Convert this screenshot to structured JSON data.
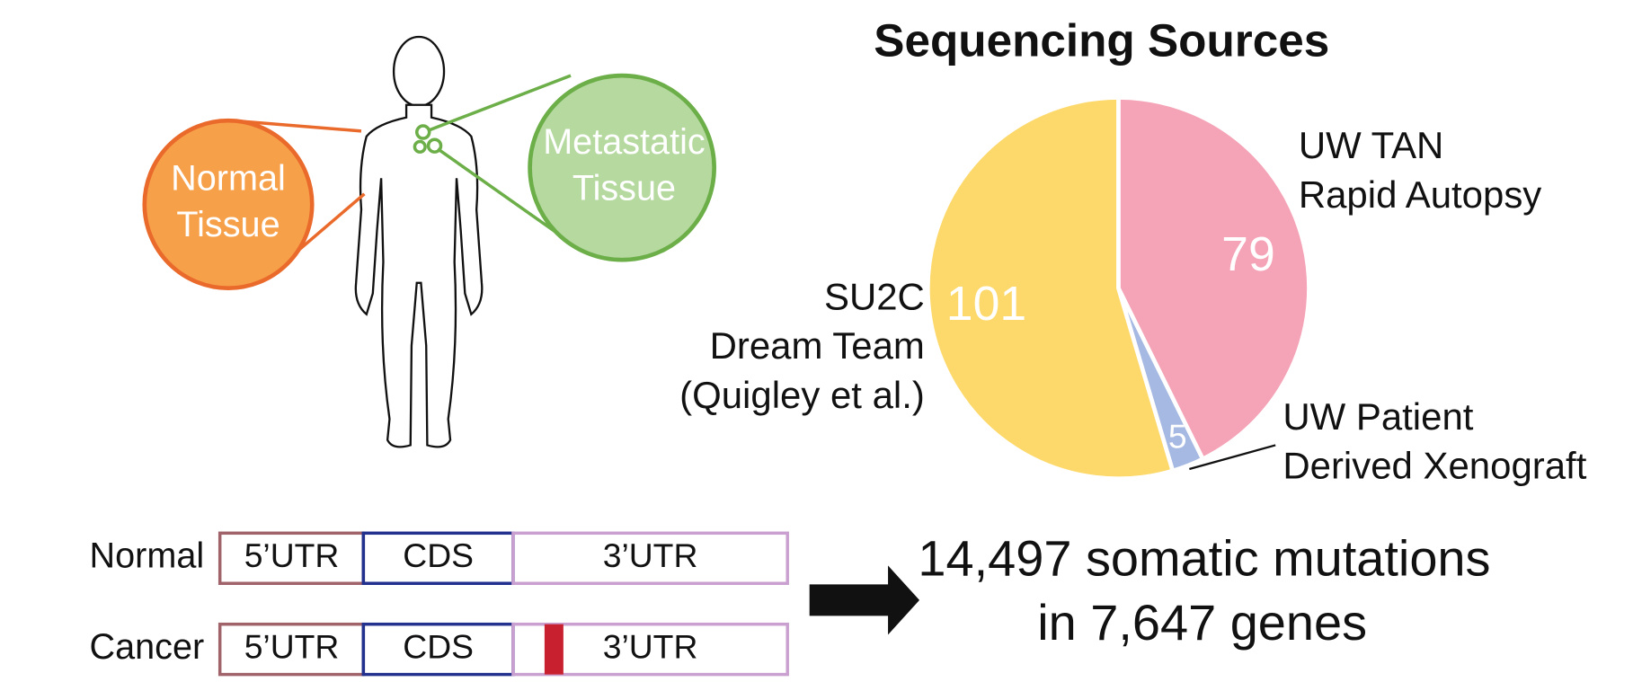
{
  "chart_data": {
    "type": "pie",
    "title": "Sequencing Sources",
    "categories": [
      "UW TAN\nRapid Autopsy",
      "UW Patient\nDerived Xenograft",
      "SU2C\nDream Team\n(Quigley et al.)"
    ],
    "values": [
      79,
      5,
      101
    ],
    "colors": [
      "#f5a3b6",
      "#a6b9e2",
      "#fdd96b"
    ]
  },
  "body_diagram": {
    "normal_label": "Normal\nTissue",
    "metastatic_label": "Metastatic\nTissue"
  },
  "transcripts": {
    "rows": [
      {
        "label": "Normal",
        "segments": [
          "5’UTR",
          "CDS",
          "3’UTR"
        ]
      },
      {
        "label": "Cancer",
        "segments": [
          "5’UTR",
          "CDS",
          "3’UTR"
        ]
      }
    ]
  },
  "summary": {
    "lines": [
      "14,497 somatic mutations",
      "in 7,647 genes"
    ]
  }
}
